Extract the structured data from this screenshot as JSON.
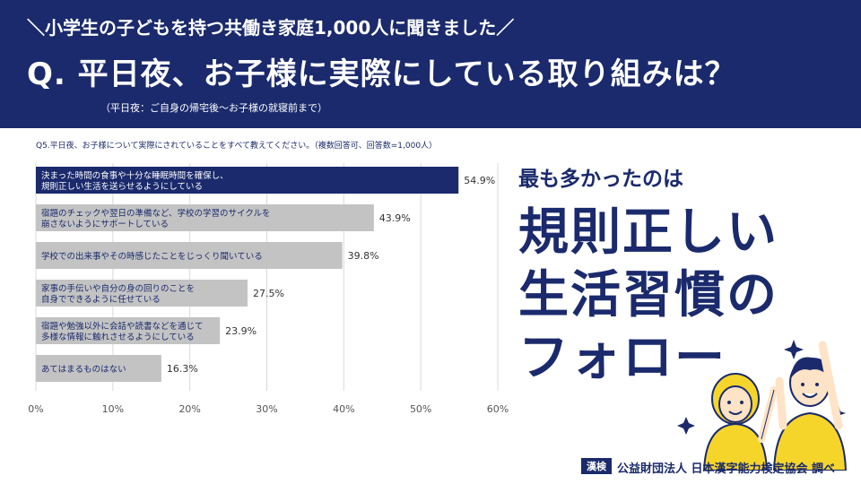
{
  "header": {
    "subtitle": "＼小学生の子どもを持つ共働き家庭1,000人に聞きました／",
    "title": "Q. 平日夜、お子様に実際にしている取り組みは？",
    "note": "（平日夜：ご自身の帰宅後〜お子様の就寝前まで）"
  },
  "question": "Q5.平日夜、お子様について実際にされていることをすべて教えてください。（複数回答可、回答数=1,000人）",
  "chart_data": {
    "type": "bar",
    "orientation": "horizontal",
    "categories": [
      [
        "決まった時間の食事や十分な睡眠時間を確保し、",
        "規則正しい生活を送らせるようにしている"
      ],
      [
        "宿題のチェックや翌日の準備など、学校の学習のサイクルを",
        "崩さないようにサポートしている"
      ],
      [
        "学校での出来事やその時感じたことをじっくり聞いている"
      ],
      [
        "家事の手伝いや自分の身の回りのことを",
        "自身でできるように任せている"
      ],
      [
        "宿題や勉強以外に会話や読書などを通じて",
        "多様な情報に触れさせるようにしている"
      ],
      [
        "あてはまるものはない"
      ]
    ],
    "values": [
      54.9,
      43.9,
      39.8,
      27.5,
      23.9,
      16.3
    ],
    "value_labels": [
      "54.9%",
      "43.9%",
      "39.8%",
      "27.5%",
      "23.9%",
      "16.3%"
    ],
    "xlim": [
      0,
      60
    ],
    "xticks": [
      "0%",
      "10%",
      "20%",
      "30%",
      "40%",
      "50%",
      "60%"
    ],
    "grid": true,
    "colors": {
      "highlight": "#1a2a6c",
      "default": "#c3c3c3",
      "highlight_text": "#ffffff",
      "default_text": "#1a2a6c"
    }
  },
  "right_panel": {
    "lead": "最も多かったのは",
    "lines": [
      "規則正しい",
      "生活習慣の",
      "フォロー"
    ]
  },
  "source": {
    "logo": "漢検",
    "text": "公益財団法人 日本漢字能力検定協会 調べ"
  },
  "colors": {
    "navy": "#1a2a6c",
    "yellow": "#f6d52a",
    "white": "#ffffff"
  }
}
